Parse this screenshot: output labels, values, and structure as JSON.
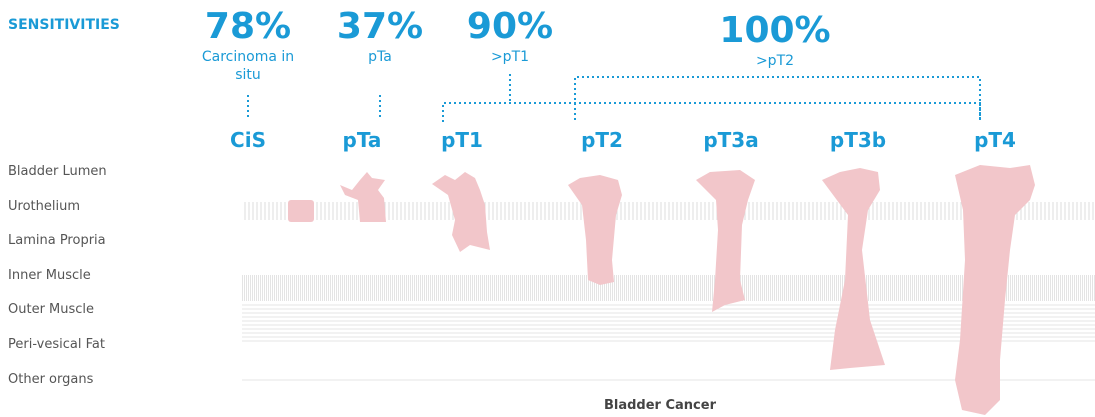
{
  "heading": "SENSITIVITIES",
  "sensitivities": [
    {
      "value": "78%",
      "label": "Carcinoma in situ"
    },
    {
      "value": "37%",
      "label": "pTa"
    },
    {
      "value": "90%",
      "label": ">pT1"
    },
    {
      "value": "100%",
      "label": ">pT2"
    }
  ],
  "stages": [
    "CiS",
    "pTa",
    "pT1",
    "pT2",
    "pT3a",
    "pT3b",
    "pT4"
  ],
  "layers": [
    "Bladder Lumen",
    "Urothelium",
    "Lamina Propria",
    "Inner Muscle",
    "Outer Muscle",
    "Peri-vesical Fat",
    "Other organs"
  ],
  "footer": "Bladder Cancer"
}
